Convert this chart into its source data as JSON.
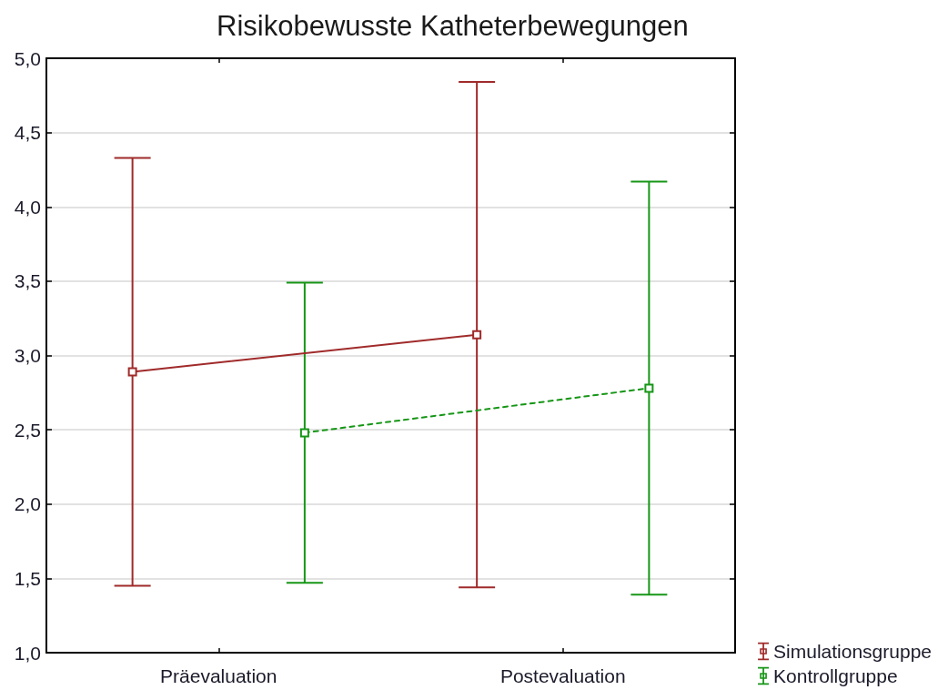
{
  "chart_data": {
    "type": "line",
    "title": "Risikobewusste Katheterbewegungen",
    "categories": [
      "Präevaluation",
      "Postevaluation"
    ],
    "series": [
      {
        "name": "Simulationsgruppe",
        "color": "#a02a2a",
        "values": [
          2.89,
          3.14
        ],
        "errors": [
          1.44,
          1.7
        ],
        "line_style": "solid"
      },
      {
        "name": "Kontrollgruppe",
        "color": "#169616",
        "values": [
          2.48,
          2.78
        ],
        "errors": [
          1.01,
          1.39
        ],
        "line_style": "dashed"
      }
    ],
    "ylim": [
      1,
      5
    ],
    "yticks": [
      {
        "value": 1,
        "label": "1,0"
      },
      {
        "value": 1.5,
        "label": "1,5"
      },
      {
        "value": 2,
        "label": "2,0"
      },
      {
        "value": 2.5,
        "label": "2,5"
      },
      {
        "value": 3,
        "label": "3,0"
      },
      {
        "value": 3.5,
        "label": "3,5"
      },
      {
        "value": 4,
        "label": "4,0"
      },
      {
        "value": 4.5,
        "label": "4,5"
      },
      {
        "value": 5,
        "label": "5,0"
      }
    ],
    "grid": "y",
    "legend": "bottom right",
    "marker": "square"
  }
}
